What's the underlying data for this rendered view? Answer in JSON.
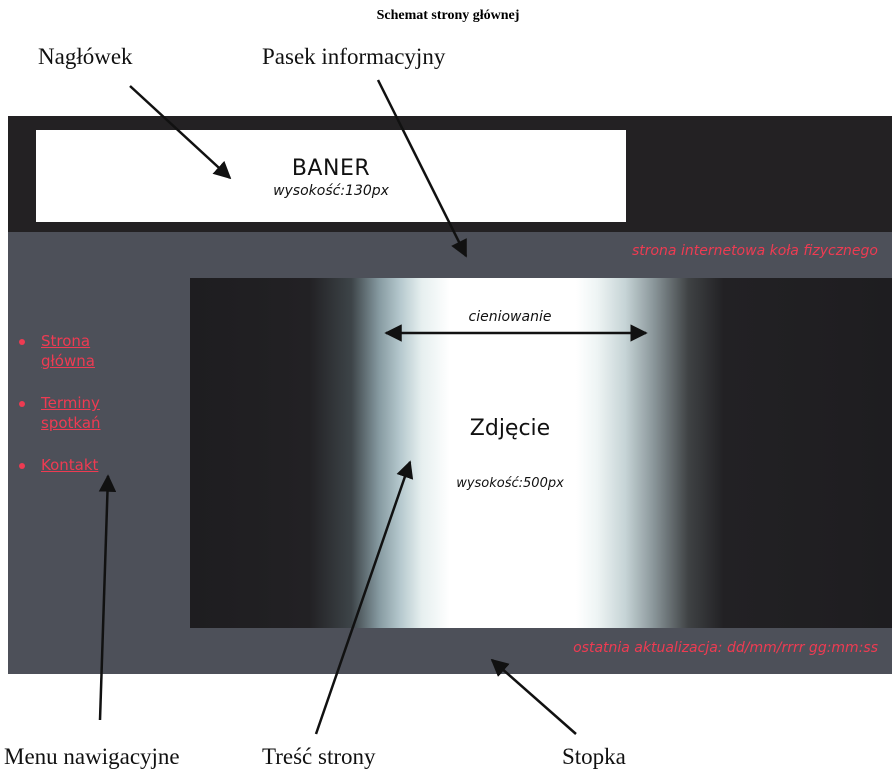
{
  "document": {
    "title": "Schemat strony głównej"
  },
  "callouts": {
    "header": "Nagłówek",
    "info_bar": "Pasek informacyjny",
    "nav_menu": "Menu nawigacyjne",
    "content": "Treść strony",
    "footer": "Stopka"
  },
  "banner": {
    "title": "BANER",
    "height": "wysokość:130px"
  },
  "info_bar": {
    "text": "strona internetowa koła fizycznego"
  },
  "nav": {
    "items": [
      {
        "label": "Strona główna"
      },
      {
        "label": "Terminy spotkań"
      },
      {
        "label": "Kontakt"
      }
    ]
  },
  "photo": {
    "shading_label": "cieniowanie",
    "title": "Zdjęcie",
    "height": "wysokość:500px"
  },
  "footer": {
    "text": "ostatnia aktualizacja: dd/mm/rrrr  gg:mm:ss"
  },
  "colors": {
    "dark_header": "#232123",
    "gray_panel": "#4d5059",
    "accent_red": "#ee3b52",
    "banner_white": "#ffffff"
  }
}
